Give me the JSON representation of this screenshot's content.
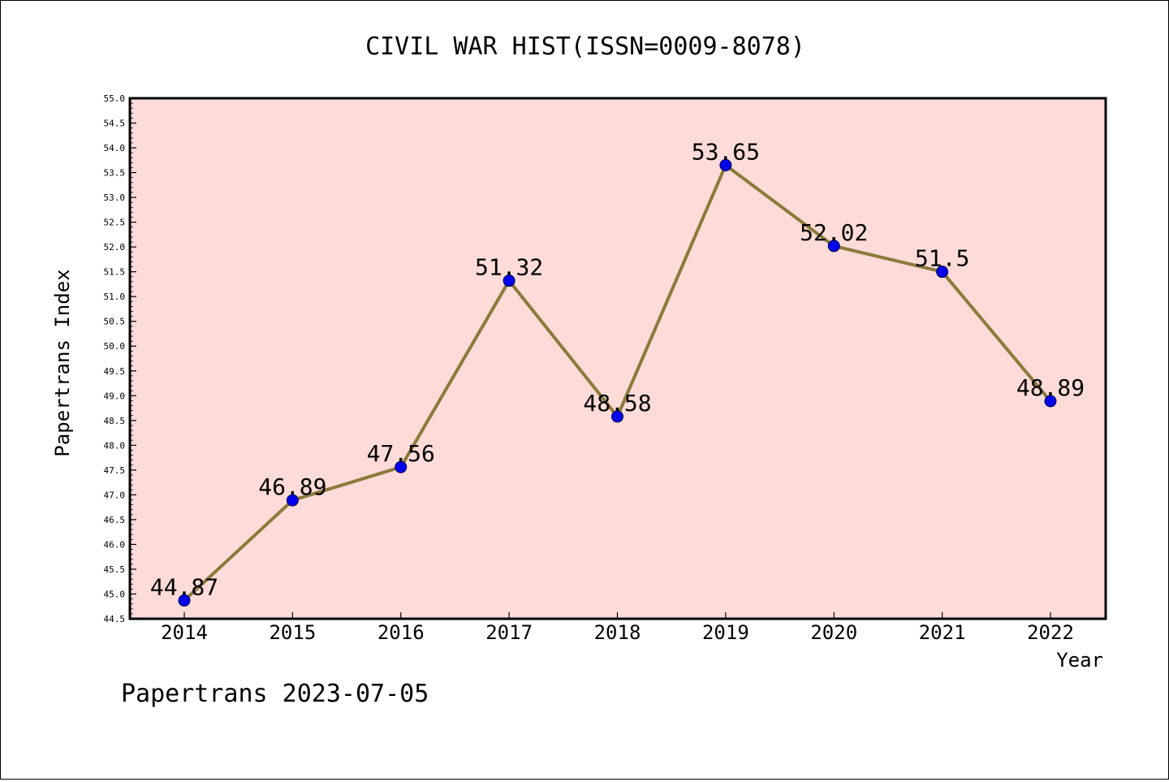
{
  "chart_data": {
    "type": "line",
    "title": "CIVIL WAR HIST(ISSN=0009-8078)",
    "xlabel": "Year",
    "ylabel": "Papertrans Index",
    "categories": [
      "2014",
      "2015",
      "2016",
      "2017",
      "2018",
      "2019",
      "2020",
      "2021",
      "2022"
    ],
    "series": [
      {
        "values": [
          44.87,
          46.89,
          47.56,
          51.32,
          48.58,
          53.65,
          52.02,
          51.5,
          48.89
        ],
        "data_labels": [
          "44.87",
          "46.89",
          "47.56",
          "51.32",
          "48.58",
          "53.65",
          "52.02",
          "51.5",
          "48.89"
        ]
      }
    ],
    "ylim": [
      44.5,
      55.0
    ],
    "yticks": [
      "44.5",
      "45.0",
      "45.5",
      "46.0",
      "46.5",
      "47.0",
      "47.5",
      "48.0",
      "48.5",
      "49.0",
      "49.5",
      "50.0",
      "50.5",
      "51.0",
      "51.5",
      "52.0",
      "52.5",
      "53.0",
      "53.5",
      "54.0",
      "54.5",
      "55.0"
    ],
    "grid": false,
    "legend": "none",
    "colors": {
      "plot_background": "#fddbd8",
      "line": "#8b7a3a",
      "marker": "#0000ee",
      "axis": "#000000"
    }
  },
  "footer": {
    "text": "Papertrans 2023-07-05"
  }
}
